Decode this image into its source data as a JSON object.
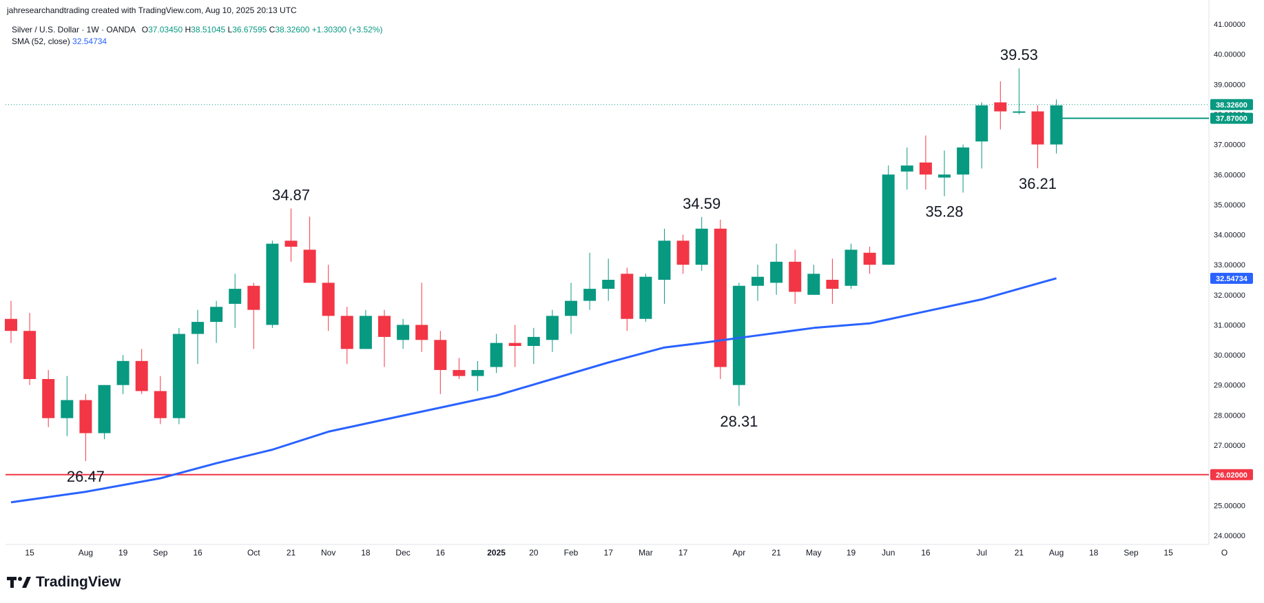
{
  "header": {
    "attribution": "jahresearchandtrading created with TradingView.com, Aug 10, 2025 20:13 UTC"
  },
  "legend": {
    "symbol": "Silver / U.S. Dollar · 1W · OANDA",
    "open_label": "O",
    "open": "37.03450",
    "high_label": "H",
    "high": "38.51045",
    "low_label": "L",
    "low": "36.67595",
    "close_label": "C",
    "close": "38.32600",
    "change": "+1.30300 (+3.52%)",
    "sma_label": "SMA (52, close)",
    "sma_value": "32.54734"
  },
  "brand": {
    "name": "TradingView"
  },
  "colors": {
    "up": "#089981",
    "down": "#f23645",
    "sma": "#2962ff",
    "support": "#f23645",
    "level": "#089981",
    "text": "#131722",
    "axis_text": "#131722"
  },
  "chart_data": {
    "type": "candlestick",
    "timeframe": "1W",
    "yrange": [
      23.7,
      41.3
    ],
    "y_ticks": [
      "24.00000",
      "25.00000",
      "26.00000",
      "27.00000",
      "28.00000",
      "29.00000",
      "30.00000",
      "31.00000",
      "32.00000",
      "33.00000",
      "34.00000",
      "35.00000",
      "36.00000",
      "37.00000",
      "38.00000",
      "39.00000",
      "40.00000",
      "41.00000"
    ],
    "y_tick_values": [
      24,
      25,
      26,
      27,
      28,
      29,
      30,
      31,
      32,
      33,
      34,
      35,
      36,
      37,
      38,
      39,
      40,
      41
    ],
    "x_labels": [
      {
        "text": "15",
        "week": 1
      },
      {
        "text": "Aug",
        "week": 4
      },
      {
        "text": "19",
        "week": 6
      },
      {
        "text": "Sep",
        "week": 8
      },
      {
        "text": "16",
        "week": 10
      },
      {
        "text": "Oct",
        "week": 13
      },
      {
        "text": "21",
        "week": 15
      },
      {
        "text": "Nov",
        "week": 17
      },
      {
        "text": "18",
        "week": 19
      },
      {
        "text": "Dec",
        "week": 21
      },
      {
        "text": "16",
        "week": 23
      },
      {
        "text": "2025",
        "week": 26,
        "bold": true
      },
      {
        "text": "20",
        "week": 28
      },
      {
        "text": "Feb",
        "week": 30
      },
      {
        "text": "17",
        "week": 32
      },
      {
        "text": "Mar",
        "week": 34
      },
      {
        "text": "17",
        "week": 36
      },
      {
        "text": "Apr",
        "week": 39
      },
      {
        "text": "21",
        "week": 41
      },
      {
        "text": "May",
        "week": 43
      },
      {
        "text": "19",
        "week": 45
      },
      {
        "text": "Jun",
        "week": 47
      },
      {
        "text": "16",
        "week": 49
      },
      {
        "text": "Jul",
        "week": 52
      },
      {
        "text": "21",
        "week": 54
      },
      {
        "text": "Aug",
        "week": 56
      },
      {
        "text": "18",
        "week": 58
      },
      {
        "text": "Sep",
        "week": 60
      },
      {
        "text": "15",
        "week": 62
      },
      {
        "text": "O",
        "week": 65
      }
    ],
    "candles": [
      {
        "o": 31.2,
        "h": 31.8,
        "l": 30.4,
        "c": 30.8
      },
      {
        "o": 30.8,
        "h": 31.4,
        "l": 29.0,
        "c": 29.2
      },
      {
        "o": 29.2,
        "h": 29.5,
        "l": 27.6,
        "c": 27.9
      },
      {
        "o": 27.9,
        "h": 29.3,
        "l": 27.3,
        "c": 28.5
      },
      {
        "o": 28.5,
        "h": 28.7,
        "l": 26.47,
        "c": 27.4
      },
      {
        "o": 27.4,
        "h": 29.0,
        "l": 27.2,
        "c": 29.0
      },
      {
        "o": 29.0,
        "h": 30.0,
        "l": 28.7,
        "c": 29.8
      },
      {
        "o": 29.8,
        "h": 30.2,
        "l": 28.7,
        "c": 28.8
      },
      {
        "o": 28.8,
        "h": 29.3,
        "l": 27.7,
        "c": 27.9
      },
      {
        "o": 27.9,
        "h": 30.9,
        "l": 27.7,
        "c": 30.7
      },
      {
        "o": 30.7,
        "h": 31.5,
        "l": 29.7,
        "c": 31.1
      },
      {
        "o": 31.1,
        "h": 31.8,
        "l": 30.4,
        "c": 31.6
      },
      {
        "o": 31.7,
        "h": 32.7,
        "l": 30.9,
        "c": 32.2
      },
      {
        "o": 32.3,
        "h": 32.4,
        "l": 30.2,
        "c": 31.5
      },
      {
        "o": 31.0,
        "h": 33.8,
        "l": 30.9,
        "c": 33.7
      },
      {
        "o": 33.8,
        "h": 34.87,
        "l": 33.1,
        "c": 33.6
      },
      {
        "o": 33.5,
        "h": 34.6,
        "l": 32.4,
        "c": 32.4
      },
      {
        "o": 32.4,
        "h": 33.0,
        "l": 30.8,
        "c": 31.3
      },
      {
        "o": 31.3,
        "h": 31.6,
        "l": 29.7,
        "c": 30.2
      },
      {
        "o": 30.2,
        "h": 31.5,
        "l": 30.2,
        "c": 31.3
      },
      {
        "o": 31.3,
        "h": 31.5,
        "l": 29.6,
        "c": 30.6
      },
      {
        "o": 30.5,
        "h": 31.2,
        "l": 30.2,
        "c": 31.0
      },
      {
        "o": 31.0,
        "h": 32.4,
        "l": 30.1,
        "c": 30.5
      },
      {
        "o": 30.5,
        "h": 30.8,
        "l": 28.7,
        "c": 29.5
      },
      {
        "o": 29.5,
        "h": 29.9,
        "l": 29.2,
        "c": 29.3
      },
      {
        "o": 29.3,
        "h": 29.8,
        "l": 28.8,
        "c": 29.5
      },
      {
        "o": 29.6,
        "h": 30.7,
        "l": 29.4,
        "c": 30.4
      },
      {
        "o": 30.4,
        "h": 31.0,
        "l": 29.6,
        "c": 30.3
      },
      {
        "o": 30.3,
        "h": 30.9,
        "l": 29.7,
        "c": 30.6
      },
      {
        "o": 30.5,
        "h": 31.5,
        "l": 30.1,
        "c": 31.3
      },
      {
        "o": 31.3,
        "h": 32.4,
        "l": 30.7,
        "c": 31.8
      },
      {
        "o": 31.8,
        "h": 33.4,
        "l": 31.5,
        "c": 32.2
      },
      {
        "o": 32.2,
        "h": 33.2,
        "l": 31.8,
        "c": 32.5
      },
      {
        "o": 32.7,
        "h": 32.9,
        "l": 30.8,
        "c": 31.2
      },
      {
        "o": 31.2,
        "h": 32.7,
        "l": 31.1,
        "c": 32.6
      },
      {
        "o": 32.5,
        "h": 34.2,
        "l": 31.7,
        "c": 33.8
      },
      {
        "o": 33.8,
        "h": 34.0,
        "l": 32.7,
        "c": 33.0
      },
      {
        "o": 33.0,
        "h": 34.59,
        "l": 32.8,
        "c": 34.2
      },
      {
        "o": 34.2,
        "h": 34.5,
        "l": 29.2,
        "c": 29.6
      },
      {
        "o": 29.0,
        "h": 32.4,
        "l": 28.31,
        "c": 32.3
      },
      {
        "o": 32.3,
        "h": 33.0,
        "l": 31.8,
        "c": 32.6
      },
      {
        "o": 32.4,
        "h": 33.7,
        "l": 32.0,
        "c": 33.1
      },
      {
        "o": 33.1,
        "h": 33.5,
        "l": 31.7,
        "c": 32.1
      },
      {
        "o": 32.0,
        "h": 33.0,
        "l": 32.0,
        "c": 32.7
      },
      {
        "o": 32.5,
        "h": 33.2,
        "l": 31.7,
        "c": 32.2
      },
      {
        "o": 32.3,
        "h": 33.7,
        "l": 32.2,
        "c": 33.5
      },
      {
        "o": 33.4,
        "h": 33.6,
        "l": 32.7,
        "c": 33.0
      },
      {
        "o": 33.0,
        "h": 36.3,
        "l": 33.0,
        "c": 36.0
      },
      {
        "o": 36.1,
        "h": 36.9,
        "l": 35.5,
        "c": 36.3
      },
      {
        "o": 36.4,
        "h": 37.3,
        "l": 35.5,
        "c": 36.0
      },
      {
        "o": 35.9,
        "h": 36.8,
        "l": 35.28,
        "c": 36.0
      },
      {
        "o": 36.0,
        "h": 37.0,
        "l": 35.4,
        "c": 36.9
      },
      {
        "o": 37.1,
        "h": 38.4,
        "l": 36.2,
        "c": 38.3
      },
      {
        "o": 38.4,
        "h": 39.1,
        "l": 37.5,
        "c": 38.1
      },
      {
        "o": 38.1,
        "h": 39.53,
        "l": 38.0,
        "c": 38.1
      },
      {
        "o": 38.1,
        "h": 38.3,
        "l": 36.21,
        "c": 37.0
      },
      {
        "o": 37.0,
        "h": 38.5,
        "l": 36.7,
        "c": 38.3
      }
    ],
    "sma": {
      "name": "SMA (52, close)",
      "points": [
        {
          "w": 0,
          "v": 25.1
        },
        {
          "w": 4,
          "v": 25.45
        },
        {
          "w": 8,
          "v": 25.9
        },
        {
          "w": 11,
          "v": 26.4
        },
        {
          "w": 14,
          "v": 26.85
        },
        {
          "w": 17,
          "v": 27.45
        },
        {
          "w": 20,
          "v": 27.85
        },
        {
          "w": 23,
          "v": 28.25
        },
        {
          "w": 26,
          "v": 28.65
        },
        {
          "w": 29,
          "v": 29.2
        },
        {
          "w": 32,
          "v": 29.75
        },
        {
          "w": 35,
          "v": 30.25
        },
        {
          "w": 37,
          "v": 30.4
        },
        {
          "w": 40,
          "v": 30.65
        },
        {
          "w": 43,
          "v": 30.9
        },
        {
          "w": 46,
          "v": 31.05
        },
        {
          "w": 49,
          "v": 31.45
        },
        {
          "w": 52,
          "v": 31.85
        },
        {
          "w": 54,
          "v": 32.2
        },
        {
          "w": 56,
          "v": 32.55
        }
      ]
    },
    "support_line": {
      "value": 26.02,
      "label": "26.02000"
    },
    "level_line": {
      "value": 37.87,
      "from_week": 56,
      "label": "37.87000"
    },
    "last_price": {
      "value": 38.326,
      "label": "38.32600"
    },
    "sma_last": {
      "value": 32.54734,
      "label": "32.54734"
    },
    "annotations": [
      {
        "text": "26.47",
        "week": 4,
        "value": 26.47,
        "pos": "below"
      },
      {
        "text": "34.87",
        "week": 15,
        "value": 34.87,
        "pos": "above"
      },
      {
        "text": "34.59",
        "week": 37,
        "value": 34.59,
        "pos": "above"
      },
      {
        "text": "28.31",
        "week": 39,
        "value": 28.31,
        "pos": "below"
      },
      {
        "text": "35.28",
        "week": 50,
        "value": 35.28,
        "pos": "below"
      },
      {
        "text": "39.53",
        "week": 54,
        "value": 39.53,
        "pos": "above"
      },
      {
        "text": "36.21",
        "week": 55,
        "value": 36.21,
        "pos": "below"
      }
    ]
  }
}
